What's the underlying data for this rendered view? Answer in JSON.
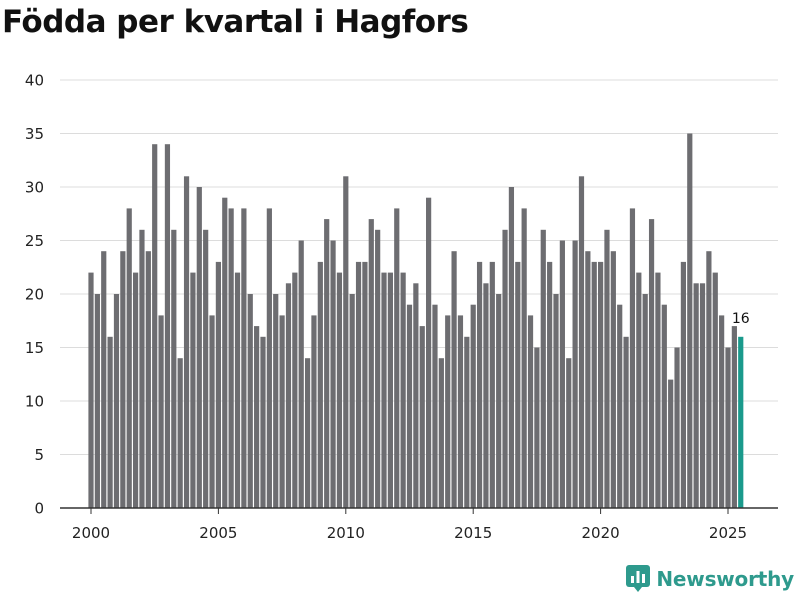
{
  "header": {
    "title": "Födda per kvartal i Hagfors"
  },
  "brand": {
    "name": "Newsworthy"
  },
  "colors": {
    "bar": "#6d6d71",
    "highlight": "#1a9a8c",
    "grid": "#dcdcdc",
    "axis": "#333333",
    "brand": "#2e9a8d"
  },
  "chart_data": {
    "type": "bar",
    "title": "Födda per kvartal i Hagfors",
    "xlabel": "",
    "ylabel": "",
    "ylim": [
      0,
      40
    ],
    "yticks": [
      0,
      5,
      10,
      15,
      20,
      25,
      30,
      35,
      40
    ],
    "xticks": [
      2000,
      2005,
      2010,
      2015,
      2020,
      2025
    ],
    "grid": true,
    "start_year": 2000,
    "periods_per_year": 4,
    "values": [
      22,
      20,
      24,
      16,
      20,
      24,
      28,
      22,
      26,
      24,
      34,
      18,
      34,
      26,
      14,
      31,
      22,
      30,
      26,
      18,
      23,
      29,
      28,
      22,
      28,
      20,
      17,
      16,
      28,
      20,
      18,
      21,
      22,
      25,
      14,
      18,
      23,
      27,
      25,
      22,
      31,
      20,
      23,
      23,
      27,
      26,
      22,
      22,
      28,
      22,
      19,
      21,
      17,
      29,
      19,
      14,
      18,
      24,
      18,
      16,
      19,
      23,
      21,
      23,
      20,
      26,
      30,
      23,
      28,
      18,
      15,
      26,
      23,
      20,
      25,
      14,
      25,
      31,
      24,
      23,
      23,
      26,
      24,
      19,
      16,
      28,
      22,
      20,
      27,
      22,
      19,
      12,
      15,
      23,
      35,
      21,
      21,
      24,
      22,
      18,
      15,
      17,
      16
    ],
    "highlight_index": 102,
    "annotation": {
      "label": "16",
      "index": 102
    }
  }
}
